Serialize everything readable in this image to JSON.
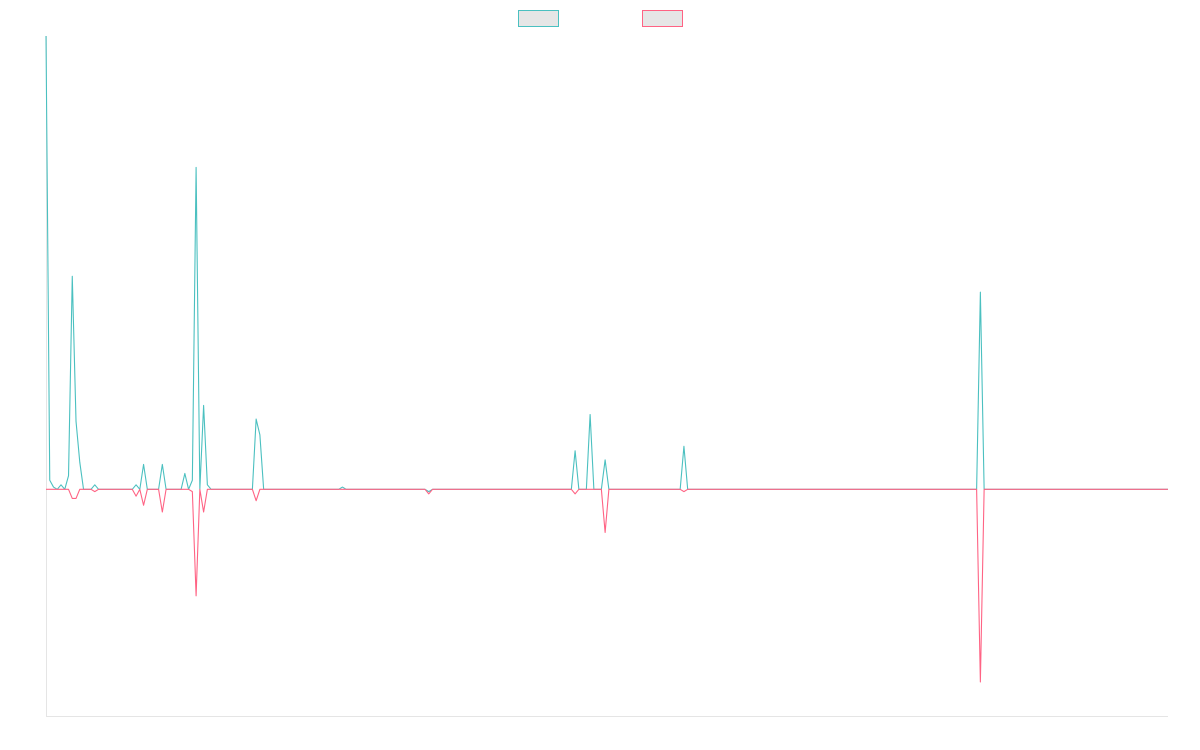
{
  "chart_data": {
    "type": "line",
    "title": "",
    "xlabel": "",
    "ylabel": "",
    "legend_position": "top-center",
    "grid": false,
    "x_count": 300,
    "ylim": [
      -1.0,
      2.0
    ],
    "series": [
      {
        "name": "",
        "color": "#4bc0c0",
        "points": [
          [
            0,
            2.0
          ],
          [
            1,
            0.04
          ],
          [
            2,
            0.01
          ],
          [
            3,
            0.0
          ],
          [
            4,
            0.02
          ],
          [
            5,
            0.0
          ],
          [
            6,
            0.06
          ],
          [
            7,
            0.94
          ],
          [
            8,
            0.3
          ],
          [
            9,
            0.12
          ],
          [
            10,
            0.0
          ],
          [
            11,
            0.0
          ],
          [
            12,
            0.0
          ],
          [
            13,
            0.02
          ],
          [
            14,
            0.0
          ],
          [
            15,
            0.0
          ],
          [
            16,
            0.0
          ],
          [
            17,
            0.0
          ],
          [
            18,
            0.0
          ],
          [
            19,
            0.0
          ],
          [
            20,
            0.0
          ],
          [
            21,
            0.0
          ],
          [
            22,
            0.0
          ],
          [
            23,
            0.0
          ],
          [
            24,
            0.02
          ],
          [
            25,
            0.0
          ],
          [
            26,
            0.11
          ],
          [
            27,
            0.0
          ],
          [
            28,
            0.0
          ],
          [
            29,
            0.0
          ],
          [
            30,
            0.0
          ],
          [
            31,
            0.11
          ],
          [
            32,
            0.0
          ],
          [
            33,
            0.0
          ],
          [
            34,
            0.0
          ],
          [
            35,
            0.0
          ],
          [
            36,
            0.0
          ],
          [
            37,
            0.07
          ],
          [
            38,
            0.0
          ],
          [
            39,
            0.04
          ],
          [
            40,
            1.42
          ],
          [
            41,
            0.0
          ],
          [
            42,
            0.37
          ],
          [
            43,
            0.02
          ],
          [
            44,
            0.0
          ],
          [
            45,
            0.0
          ],
          [
            46,
            0.0
          ],
          [
            47,
            0.0
          ],
          [
            48,
            0.0
          ],
          [
            49,
            0.0
          ],
          [
            50,
            0.0
          ],
          [
            51,
            0.0
          ],
          [
            52,
            0.0
          ],
          [
            53,
            0.0
          ],
          [
            54,
            0.0
          ],
          [
            55,
            0.0
          ],
          [
            56,
            0.31
          ],
          [
            57,
            0.24
          ],
          [
            58,
            0.0
          ],
          [
            59,
            0.0
          ],
          [
            60,
            0.0
          ],
          [
            78,
            0.0
          ],
          [
            79,
            0.01
          ],
          [
            80,
            0.0
          ],
          [
            101,
            0.0
          ],
          [
            102,
            -0.01
          ],
          [
            103,
            0.0
          ],
          [
            140,
            0.0
          ],
          [
            141,
            0.17
          ],
          [
            142,
            0.0
          ],
          [
            143,
            0.0
          ],
          [
            144,
            0.0
          ],
          [
            145,
            0.33
          ],
          [
            146,
            0.0
          ],
          [
            147,
            0.0
          ],
          [
            148,
            0.0
          ],
          [
            149,
            0.13
          ],
          [
            150,
            0.0
          ],
          [
            169,
            0.0
          ],
          [
            170,
            0.19
          ],
          [
            171,
            0.0
          ],
          [
            248,
            0.0
          ],
          [
            249,
            0.87
          ],
          [
            250,
            0.0
          ],
          [
            299,
            0.0
          ]
        ]
      },
      {
        "name": "",
        "color": "#ff6384",
        "points": [
          [
            0,
            0.0
          ],
          [
            1,
            0.0
          ],
          [
            2,
            0.0
          ],
          [
            3,
            0.0
          ],
          [
            4,
            0.0
          ],
          [
            5,
            0.0
          ],
          [
            6,
            0.0
          ],
          [
            7,
            -0.04
          ],
          [
            8,
            -0.04
          ],
          [
            9,
            0.0
          ],
          [
            10,
            0.0
          ],
          [
            11,
            0.0
          ],
          [
            12,
            0.0
          ],
          [
            13,
            -0.01
          ],
          [
            14,
            0.0
          ],
          [
            15,
            0.0
          ],
          [
            16,
            0.0
          ],
          [
            17,
            0.0
          ],
          [
            18,
            0.0
          ],
          [
            19,
            0.0
          ],
          [
            20,
            0.0
          ],
          [
            21,
            0.0
          ],
          [
            22,
            0.0
          ],
          [
            23,
            0.0
          ],
          [
            24,
            -0.03
          ],
          [
            25,
            0.0
          ],
          [
            26,
            -0.07
          ],
          [
            27,
            0.0
          ],
          [
            28,
            0.0
          ],
          [
            29,
            0.0
          ],
          [
            30,
            0.0
          ],
          [
            31,
            -0.1
          ],
          [
            32,
            0.0
          ],
          [
            33,
            0.0
          ],
          [
            34,
            0.0
          ],
          [
            35,
            0.0
          ],
          [
            36,
            0.0
          ],
          [
            37,
            0.0
          ],
          [
            38,
            0.0
          ],
          [
            39,
            -0.01
          ],
          [
            40,
            -0.47
          ],
          [
            41,
            0.0
          ],
          [
            42,
            -0.1
          ],
          [
            43,
            0.0
          ],
          [
            44,
            0.0
          ],
          [
            45,
            0.0
          ],
          [
            46,
            0.0
          ],
          [
            47,
            0.0
          ],
          [
            48,
            0.0
          ],
          [
            49,
            0.0
          ],
          [
            50,
            0.0
          ],
          [
            51,
            0.0
          ],
          [
            52,
            0.0
          ],
          [
            53,
            0.0
          ],
          [
            54,
            0.0
          ],
          [
            55,
            0.0
          ],
          [
            56,
            -0.05
          ],
          [
            57,
            0.0
          ],
          [
            58,
            0.0
          ],
          [
            59,
            0.0
          ],
          [
            60,
            0.0
          ],
          [
            100,
            0.0
          ],
          [
            101,
            0.0
          ],
          [
            102,
            -0.02
          ],
          [
            103,
            0.0
          ],
          [
            140,
            0.0
          ],
          [
            141,
            -0.02
          ],
          [
            142,
            0.0
          ],
          [
            143,
            0.0
          ],
          [
            144,
            0.0
          ],
          [
            145,
            0.0
          ],
          [
            146,
            0.0
          ],
          [
            147,
            0.0
          ],
          [
            148,
            0.0
          ],
          [
            149,
            -0.19
          ],
          [
            150,
            0.0
          ],
          [
            169,
            0.0
          ],
          [
            170,
            -0.01
          ],
          [
            171,
            0.0
          ],
          [
            248,
            0.0
          ],
          [
            249,
            -0.85
          ],
          [
            250,
            0.0
          ],
          [
            299,
            0.0
          ]
        ]
      }
    ]
  }
}
